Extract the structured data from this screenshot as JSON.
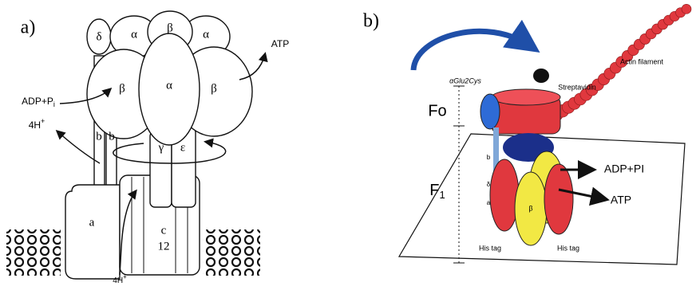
{
  "panel_a": {
    "label": "a)",
    "delta": "δ",
    "alpha_top_left": "α",
    "beta_top": "β",
    "alpha_top_right": "α",
    "beta_left": "β",
    "alpha_center": "α",
    "beta_right": "β",
    "atp": "ATP",
    "adp": {
      "main": "ADP+P",
      "sub": "i"
    },
    "proton_out": {
      "main": "4H",
      "sup": "+"
    },
    "b_left": "b",
    "b_right": "b",
    "gamma": "γ",
    "epsilon": "ε",
    "a": "a",
    "c": "c",
    "c_count": "12",
    "proton_in": {
      "main": "4H",
      "sup": "+"
    }
  },
  "panel_b": {
    "label": "b)",
    "mutation": "αGlu2Cys",
    "actin": "Actin filament",
    "streptavidin": "Streptavidin",
    "fo": "Fo",
    "f1": {
      "main": "F",
      "sub": "1"
    },
    "adp": "ADP+PI",
    "atp": "ATP",
    "his_left": "His tag",
    "his_right": "His tag",
    "b": "b",
    "delta": "δ",
    "a": "a",
    "beta": "β"
  }
}
